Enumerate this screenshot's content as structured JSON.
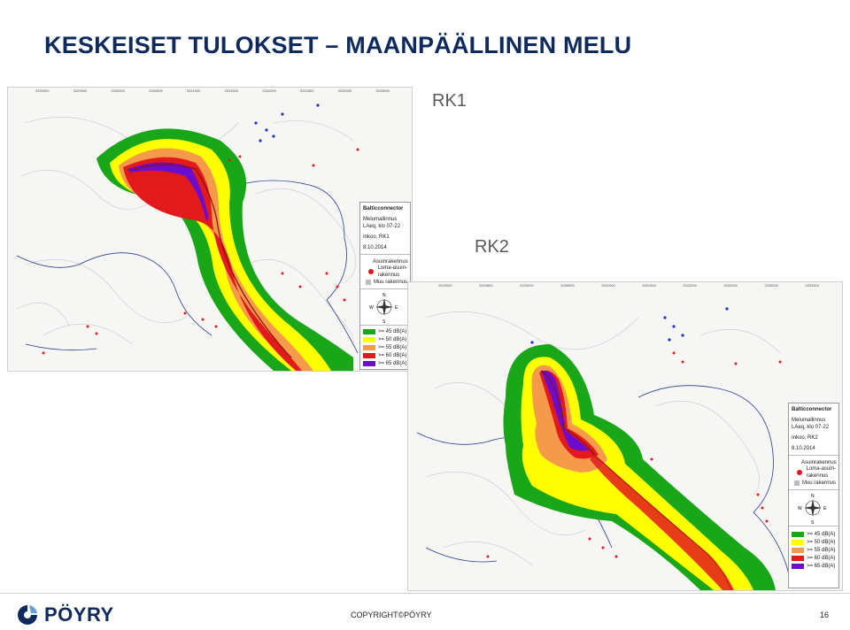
{
  "slide": {
    "title": "KESKEISET TULOKSET – MAANPÄÄLLINEN MELU",
    "label_rk1": "RK1",
    "label_rk2": "RK2",
    "copyright": "COPYRIGHT©PÖYRY",
    "page_number": "16",
    "logo_text": "PÖYRY"
  },
  "maps": {
    "rk1": {
      "legend_title": "Balticconnector",
      "legend_line1": "Melumallinnus",
      "legend_line2": "LAeq, klo 07-22",
      "legend_line3": "Inkoo, RK1",
      "legend_date": "8.10.2014"
    },
    "rk2": {
      "legend_title": "Balticconnector",
      "legend_line1": "Melumallinnus",
      "legend_line2": "LAeq, klo 07-22",
      "legend_line3": "Inkoo, RK2",
      "legend_date": "8.10.2014"
    },
    "legend_symbols": {
      "asuin": "Asuinrakennus",
      "loma": "Loma-asuin-rakennus",
      "muu": "Muu rakennus"
    },
    "noise_levels": [
      {
        "label": ">= 45 dB(A)",
        "color": "#19a619"
      },
      {
        "label": ">= 50 dB(A)",
        "color": "#ffff00"
      },
      {
        "label": ">= 55 dB(A)",
        "color": "#f59a4a"
      },
      {
        "label": ">= 60 dB(A)",
        "color": "#e31a1c"
      },
      {
        "label": ">= 65 dB(A)",
        "color": "#6a0dcc"
      }
    ],
    "compass": {
      "n": "N",
      "s": "S",
      "e": "E",
      "w": "W"
    },
    "ticks_x": [
      "3329000",
      "3329500",
      "3330000",
      "3330500",
      "3331000",
      "3331500",
      "3332000",
      "3332500",
      "3333000",
      "3333500"
    ]
  }
}
